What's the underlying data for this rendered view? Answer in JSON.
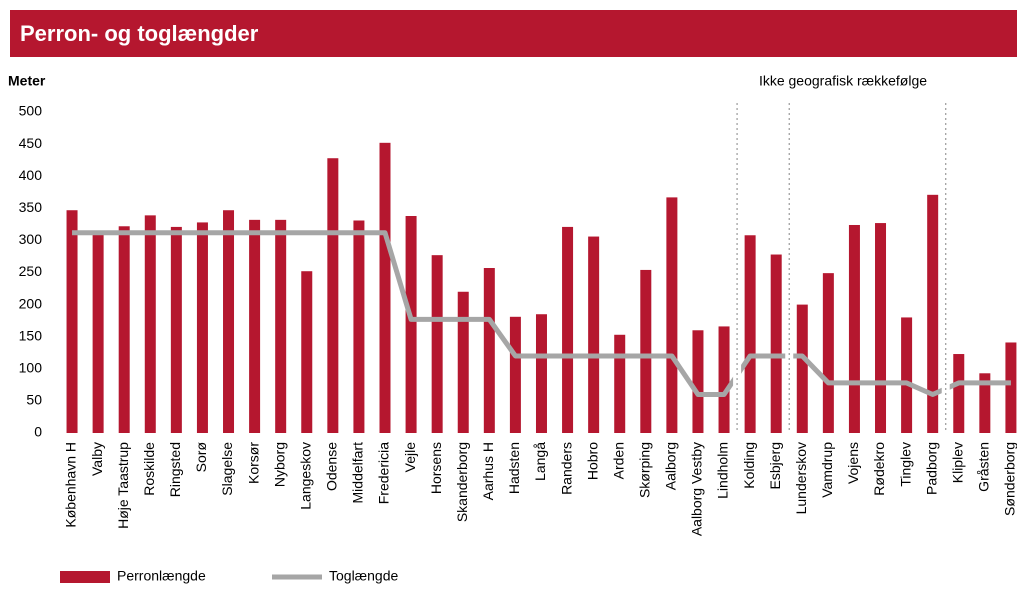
{
  "chart_data": {
    "type": "bar_line",
    "title": "Perron- og toglængder",
    "y_label": "Meter",
    "annotation": "Ikke geografisk rækkefølge",
    "categories": [
      "København H",
      "Valby",
      "Høje Taastrup",
      "Roskilde",
      "Ringsted",
      "Sorø",
      "Slagelse",
      "Korsør",
      "Nyborg",
      "Langeskov",
      "Odense",
      "Middelfart",
      "Fredericia",
      "Vejle",
      "Horsens",
      "Skanderborg",
      "Aarhus H",
      "Hadsten",
      "Langå",
      "Randers",
      "Hobro",
      "Arden",
      "Skørping",
      "Aalborg",
      "Aalborg Vestby",
      "Lindholm",
      "Kolding",
      "Esbjerg",
      "Lunderskov",
      "Vamdrup",
      "Vojens",
      "Rødekro",
      "Tinglev",
      "Padborg",
      "Kliplev",
      "Gråsten",
      "Sønderborg"
    ],
    "series": [
      {
        "name": "Perronlængde",
        "kind": "bar",
        "color": "#b5172f",
        "values": [
          347,
          312,
          322,
          339,
          321,
          328,
          347,
          332,
          332,
          252,
          428,
          331,
          452,
          338,
          277,
          220,
          257,
          181,
          185,
          321,
          306,
          153,
          254,
          367,
          160,
          166,
          308,
          278,
          200,
          249,
          324,
          327,
          180,
          371,
          123,
          93,
          141
        ]
      },
      {
        "name": "Toglængde",
        "kind": "line",
        "color": "#a6a6a6",
        "values": [
          312,
          312,
          312,
          312,
          312,
          312,
          312,
          312,
          312,
          312,
          312,
          312,
          312,
          177,
          177,
          177,
          177,
          120,
          120,
          120,
          120,
          120,
          120,
          120,
          60,
          60,
          120,
          120,
          120,
          78,
          78,
          78,
          78,
          60,
          78,
          78,
          78
        ]
      }
    ],
    "ylim": [
      0,
      500
    ],
    "yticks": [
      0,
      50,
      100,
      150,
      200,
      250,
      300,
      350,
      400,
      450,
      500
    ]
  }
}
